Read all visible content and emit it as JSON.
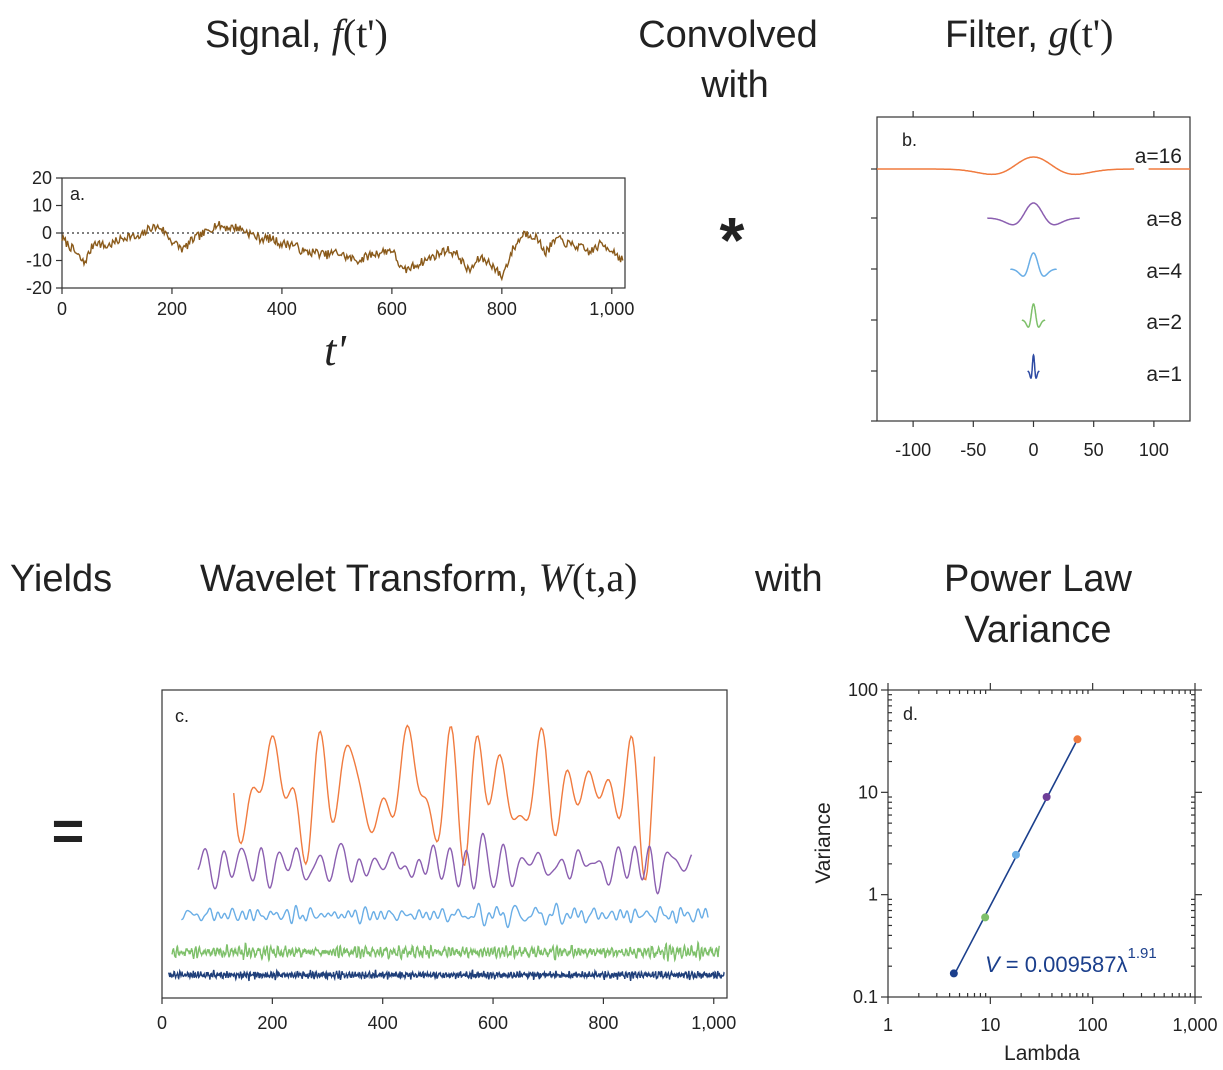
{
  "headings": {
    "signal": "Signal, ",
    "signal_math_f": "f",
    "signal_math_rest": "(t')",
    "convolved_line1": "Convolved",
    "convolved_line2": "with",
    "filter": "Filter, ",
    "filter_math_g": "g",
    "filter_math_rest": "(t')",
    "yields": "Yields",
    "wavelet": "Wavelet Transform, ",
    "wavelet_math_W": "W",
    "wavelet_math_rest": "(t,a)",
    "with": "with",
    "power_line1": "Power Law",
    "power_line2": "Variance",
    "asterisk": "*",
    "equals": "="
  },
  "chart_data": [
    {
      "id": "a",
      "type": "line",
      "panel_label": "a.",
      "xlabel": "t'",
      "xlim": [
        0,
        1024
      ],
      "ylim": [
        -20,
        20
      ],
      "xticks": [
        "0",
        "200",
        "400",
        "600",
        "800",
        "1,000"
      ],
      "yticks": [
        "20",
        "10",
        "0",
        "-10",
        "-20"
      ],
      "reference_line": {
        "y": 0,
        "style": "dotted"
      },
      "series": [
        {
          "color": "#8a5a1a",
          "x": [
            0,
            20,
            40,
            60,
            80,
            100,
            120,
            140,
            160,
            180,
            200,
            220,
            240,
            260,
            280,
            300,
            320,
            340,
            360,
            380,
            400,
            420,
            440,
            460,
            480,
            500,
            520,
            540,
            560,
            580,
            600,
            620,
            640,
            660,
            680,
            700,
            720,
            740,
            760,
            780,
            800,
            820,
            840,
            860,
            880,
            900,
            920,
            940,
            960,
            980,
            1000,
            1020
          ],
          "y": [
            -2,
            -6,
            -11,
            -3,
            -5,
            -3,
            -1,
            -2,
            2,
            2,
            -3,
            -6,
            -2,
            0,
            3,
            2,
            2,
            0,
            -2,
            -2,
            -4,
            -4,
            -7,
            -7,
            -8,
            -7,
            -9,
            -10,
            -8,
            -7,
            -6,
            -14,
            -12,
            -10,
            -8,
            -6,
            -8,
            -14,
            -9,
            -11,
            -16,
            -6,
            0,
            -1,
            -7,
            -2,
            -4,
            -5,
            -7,
            -4,
            -6,
            -10
          ]
        }
      ]
    },
    {
      "id": "b",
      "type": "line",
      "panel_label": "b.",
      "xlim": [
        -130,
        130
      ],
      "xticks": [
        "-100",
        "-50",
        "0",
        "50",
        "100"
      ],
      "series": [
        {
          "name": "a=16",
          "scale": 16,
          "color": "#f07b3f"
        },
        {
          "name": "a=8",
          "scale": 8,
          "color": "#8b5fb0"
        },
        {
          "name": "a=4",
          "scale": 4,
          "color": "#6aaee6"
        },
        {
          "name": "a=2",
          "scale": 2,
          "color": "#7ec06a"
        },
        {
          "name": "a=1",
          "scale": 1,
          "color": "#2d4aa3"
        }
      ]
    },
    {
      "id": "c",
      "type": "line",
      "panel_label": "c.",
      "xlim": [
        0,
        1024
      ],
      "xticks": [
        "0",
        "200",
        "400",
        "600",
        "800",
        "1,000"
      ],
      "series": [
        {
          "scale": 16,
          "color": "#f07b3f",
          "x_range": [
            130,
            895
          ]
        },
        {
          "scale": 8,
          "color": "#8b5fb0",
          "x_range": [
            65,
            960
          ]
        },
        {
          "scale": 4,
          "color": "#6aaee6",
          "x_range": [
            35,
            990
          ]
        },
        {
          "scale": 2,
          "color": "#7ec06a",
          "x_range": [
            18,
            1010
          ]
        },
        {
          "scale": 1,
          "color": "#1f3f7a",
          "x_range": [
            12,
            1020
          ]
        }
      ]
    },
    {
      "id": "d",
      "type": "scatter",
      "panel_label": "d.",
      "xlabel": "Lambda",
      "ylabel": "Variance",
      "xscale": "log",
      "yscale": "log",
      "xlim": [
        1,
        1000
      ],
      "ylim": [
        0.1,
        100
      ],
      "xticks": [
        "1",
        "10",
        "100",
        "1,000"
      ],
      "yticks": [
        "100",
        "10",
        "1",
        "0.1"
      ],
      "points": [
        {
          "x": 4.4,
          "y": 0.17,
          "color": "#1b3f8c"
        },
        {
          "x": 8.9,
          "y": 0.6,
          "color": "#7ec06a"
        },
        {
          "x": 17.8,
          "y": 2.45,
          "color": "#6aaee6"
        },
        {
          "x": 35.5,
          "y": 9.0,
          "color": "#6f3f98"
        },
        {
          "x": 71,
          "y": 33,
          "color": "#f07b3f"
        }
      ],
      "fit": {
        "coef": 0.009587,
        "exponent": 1.91,
        "x_range": [
          4.4,
          71
        ],
        "color": "#1b3f8c"
      },
      "annotation": {
        "var": "V",
        "eq": " =  0.009587λ",
        "exp": "1.91"
      }
    }
  ]
}
